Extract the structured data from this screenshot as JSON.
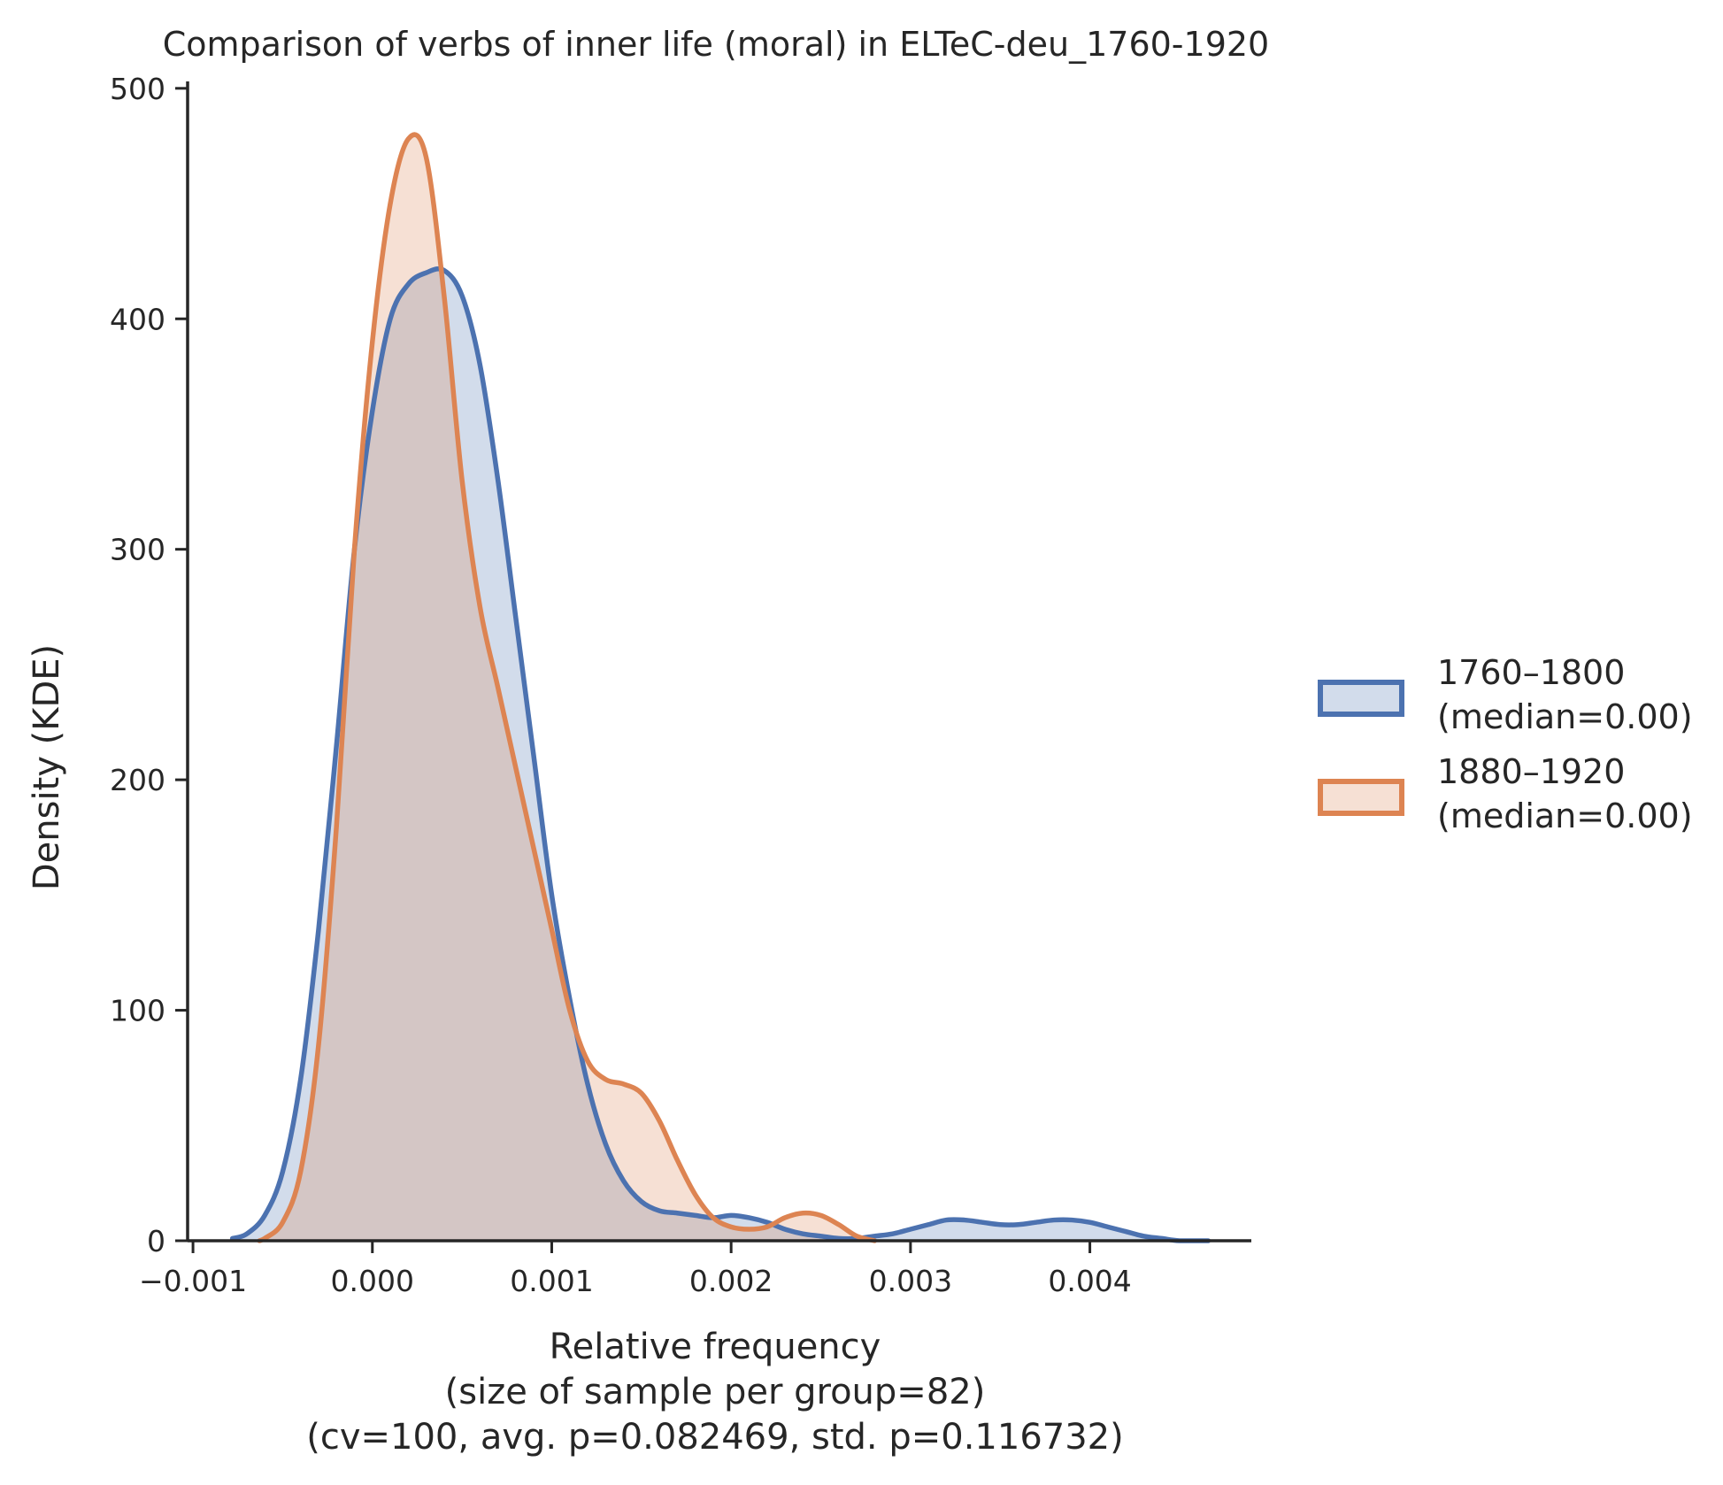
{
  "chart_data": {
    "type": "area",
    "title": "Comparison of verbs of inner life (moral) in ELTeC-deu_1760-1920",
    "xlabel_lines": [
      "Relative frequency",
      "(size of sample per group=82)",
      "(cv=100, avg. p=0.082469, std. p=0.116732)"
    ],
    "ylabel": "Density (KDE)",
    "xlim": [
      -0.00103,
      0.0049
    ],
    "ylim": [
      0,
      503
    ],
    "xticks": [
      -0.001,
      0.0,
      0.001,
      0.002,
      0.003,
      0.004
    ],
    "xtick_labels": [
      "−0.001",
      "0.000",
      "0.001",
      "0.002",
      "0.003",
      "0.004"
    ],
    "yticks": [
      0,
      100,
      200,
      300,
      400,
      500
    ],
    "ytick_labels": [
      "0",
      "100",
      "200",
      "300",
      "400",
      "500"
    ],
    "grid": false,
    "legend_position": "right",
    "series": [
      {
        "name": "1760–1800\n(median=0.00)",
        "legend_lines": [
          "1760–1800",
          "(median=0.00)"
        ],
        "color": "#4c72b0",
        "fill_opacity": 0.25,
        "x": [
          -0.00078,
          -0.0007,
          -0.0006,
          -0.0005,
          -0.0004,
          -0.0003,
          -0.0002,
          -0.0001,
          0.0,
          0.0001,
          0.0002,
          0.0003,
          0.0004,
          0.0005,
          0.0006,
          0.0007,
          0.0008,
          0.0009,
          0.001,
          0.0011,
          0.0012,
          0.0013,
          0.0014,
          0.0015,
          0.0016,
          0.0017,
          0.0018,
          0.0019,
          0.002,
          0.0021,
          0.0022,
          0.0023,
          0.0024,
          0.0025,
          0.0026,
          0.0027,
          0.0028,
          0.0029,
          0.003,
          0.0031,
          0.0032,
          0.0033,
          0.0034,
          0.0035,
          0.0036,
          0.0037,
          0.0038,
          0.0039,
          0.004,
          0.0041,
          0.0042,
          0.0043,
          0.0044,
          0.0045,
          0.00466
        ],
        "y": [
          1,
          3,
          11,
          30,
          70,
          135,
          215,
          300,
          360,
          400,
          415,
          420,
          421,
          410,
          380,
          330,
          270,
          210,
          150,
          105,
          68,
          42,
          26,
          17,
          13,
          12,
          11,
          10,
          11,
          10,
          8,
          5,
          3,
          2,
          1,
          1,
          2,
          3,
          5,
          7,
          9,
          9,
          8,
          7,
          7,
          8,
          9,
          9,
          8,
          6,
          4,
          2,
          1,
          0,
          0
        ]
      },
      {
        "name": "1880–1920\n(median=0.00)",
        "legend_lines": [
          "1880–1920",
          "(median=0.00)"
        ],
        "color": "#dd8452",
        "fill_opacity": 0.25,
        "x": [
          -0.00063,
          -0.0006,
          -0.0005,
          -0.0004,
          -0.0003,
          -0.0002,
          -0.0001,
          0.0,
          0.0001,
          0.0002,
          0.0003,
          0.0004,
          0.0005,
          0.0006,
          0.0007,
          0.0008,
          0.0009,
          0.001,
          0.0011,
          0.0012,
          0.0013,
          0.0014,
          0.0015,
          0.0016,
          0.0017,
          0.0018,
          0.0019,
          0.002,
          0.0021,
          0.0022,
          0.0023,
          0.0024,
          0.0025,
          0.0026,
          0.0027,
          0.0028
        ],
        "y": [
          0,
          1,
          8,
          30,
          85,
          180,
          300,
          390,
          450,
          478,
          470,
          410,
          330,
          275,
          240,
          205,
          170,
          135,
          100,
          78,
          70,
          68,
          64,
          52,
          35,
          20,
          10,
          6,
          5,
          6,
          10,
          12,
          11,
          7,
          2,
          0
        ]
      }
    ]
  }
}
